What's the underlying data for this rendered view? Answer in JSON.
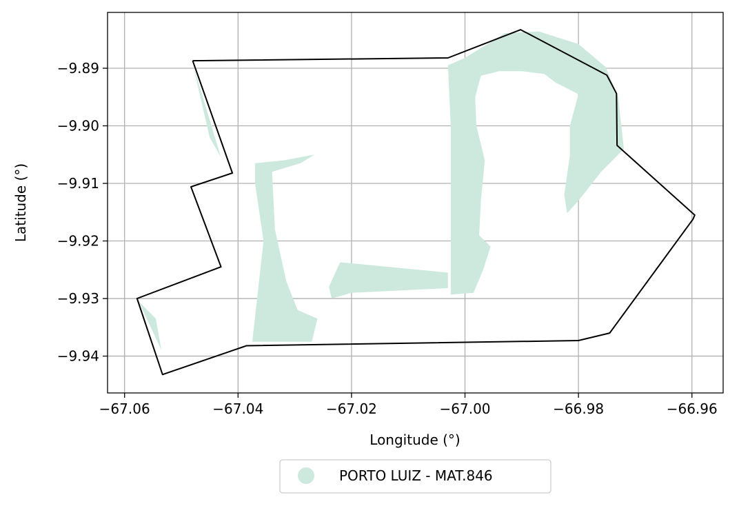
{
  "chart_data": {
    "type": "map",
    "xlabel": "Longitude (°)",
    "ylabel": "Latitude (°)",
    "xlim": [
      -67.063,
      -66.9545
    ],
    "ylim": [
      -9.9464,
      -9.8803
    ],
    "x_ticks": [
      -67.06,
      -67.04,
      -67.02,
      -67.0,
      -66.98,
      -66.96
    ],
    "x_tick_labels": [
      "−67.06",
      "−67.04",
      "−67.02",
      "−67.00",
      "−66.98",
      "−66.96"
    ],
    "y_ticks": [
      -9.89,
      -9.9,
      -9.91,
      -9.92,
      -9.93,
      -9.94
    ],
    "y_tick_labels": [
      "−9.89",
      "−9.90",
      "−9.91",
      "−9.92",
      "−9.93",
      "−9.94"
    ],
    "grid": true,
    "legend_position": "bottom-center",
    "boundary_color": "#000000",
    "series": [
      {
        "name": "PORTO LUIZ - MAT.846",
        "color": "#cde9dd",
        "polygons": [
          [
            [
              -67.0002,
              -9.8883
            ],
            [
              -66.9955,
              -9.8855
            ],
            [
              -66.993,
              -9.8839
            ],
            [
              -66.987,
              -9.8836
            ],
            [
              -66.98,
              -9.8858
            ],
            [
              -66.9752,
              -9.8898
            ],
            [
              -66.973,
              -9.895
            ],
            [
              -66.972,
              -9.904
            ],
            [
              -66.976,
              -9.908
            ],
            [
              -66.98,
              -9.913
            ],
            [
              -66.982,
              -9.9152
            ],
            [
              -66.9825,
              -9.912
            ],
            [
              -66.9815,
              -9.905
            ],
            [
              -66.9815,
              -9.9
            ],
            [
              -66.98,
              -9.8945
            ],
            [
              -66.984,
              -9.8925
            ],
            [
              -66.986,
              -9.891
            ],
            [
              -66.99,
              -9.8905
            ],
            [
              -66.994,
              -9.8905
            ],
            [
              -66.9972,
              -9.8913
            ],
            [
              -66.9982,
              -9.895
            ],
            [
              -66.998,
              -9.9
            ],
            [
              -66.9965,
              -9.906
            ],
            [
              -66.9972,
              -9.913
            ],
            [
              -66.9975,
              -9.919
            ],
            [
              -66.9955,
              -9.921
            ],
            [
              -66.9968,
              -9.925
            ],
            [
              -66.9985,
              -9.929
            ],
            [
              -67.0025,
              -9.9293
            ],
            [
              -67.0025,
              -9.92
            ],
            [
              -67.0025,
              -9.91
            ],
            [
              -67.0025,
              -9.9
            ],
            [
              -67.003,
              -9.8895
            ]
          ],
          [
            [
              -67.037,
              -9.9065
            ],
            [
              -67.032,
              -9.906
            ],
            [
              -67.0265,
              -9.905
            ],
            [
              -67.029,
              -9.9065
            ],
            [
              -67.034,
              -9.908
            ],
            [
              -67.0335,
              -9.918
            ],
            [
              -67.0315,
              -9.927
            ],
            [
              -67.0295,
              -9.932
            ],
            [
              -67.026,
              -9.9335
            ],
            [
              -67.027,
              -9.9375
            ],
            [
              -67.0375,
              -9.9375
            ],
            [
              -67.0355,
              -9.92
            ],
            [
              -67.037,
              -9.91
            ]
          ],
          [
            [
              -67.022,
              -9.9237
            ],
            [
              -67.003,
              -9.9255
            ],
            [
              -67.003,
              -9.9282
            ],
            [
              -67.02,
              -9.929
            ],
            [
              -67.0235,
              -9.93
            ],
            [
              -67.024,
              -9.928
            ]
          ],
          [
            [
              -67.048,
              -9.8892
            ],
            [
              -67.043,
              -9.9055
            ],
            [
              -67.045,
              -9.902
            ]
          ],
          [
            [
              -67.0575,
              -9.9305
            ],
            [
              -67.0535,
              -9.939
            ],
            [
              -67.0545,
              -9.9335
            ]
          ]
        ]
      }
    ],
    "boundary": [
      [
        -67.048,
        -9.8887
      ],
      [
        -67.003,
        -9.8882
      ],
      [
        -66.9902,
        -9.8833
      ],
      [
        -66.975,
        -9.8912
      ],
      [
        -66.9733,
        -9.8944
      ],
      [
        -66.9732,
        -9.9034
      ],
      [
        -66.9595,
        -9.9155
      ],
      [
        -66.9598,
        -9.9162
      ],
      [
        -66.9745,
        -9.936
      ],
      [
        -66.98,
        -9.9373
      ],
      [
        -67.0385,
        -9.9382
      ],
      [
        -67.0533,
        -9.9432
      ],
      [
        -67.0578,
        -9.93
      ],
      [
        -67.043,
        -9.9245
      ],
      [
        -67.0483,
        -9.9106
      ],
      [
        -67.041,
        -9.9082
      ],
      [
        -67.048,
        -9.8887
      ]
    ]
  }
}
